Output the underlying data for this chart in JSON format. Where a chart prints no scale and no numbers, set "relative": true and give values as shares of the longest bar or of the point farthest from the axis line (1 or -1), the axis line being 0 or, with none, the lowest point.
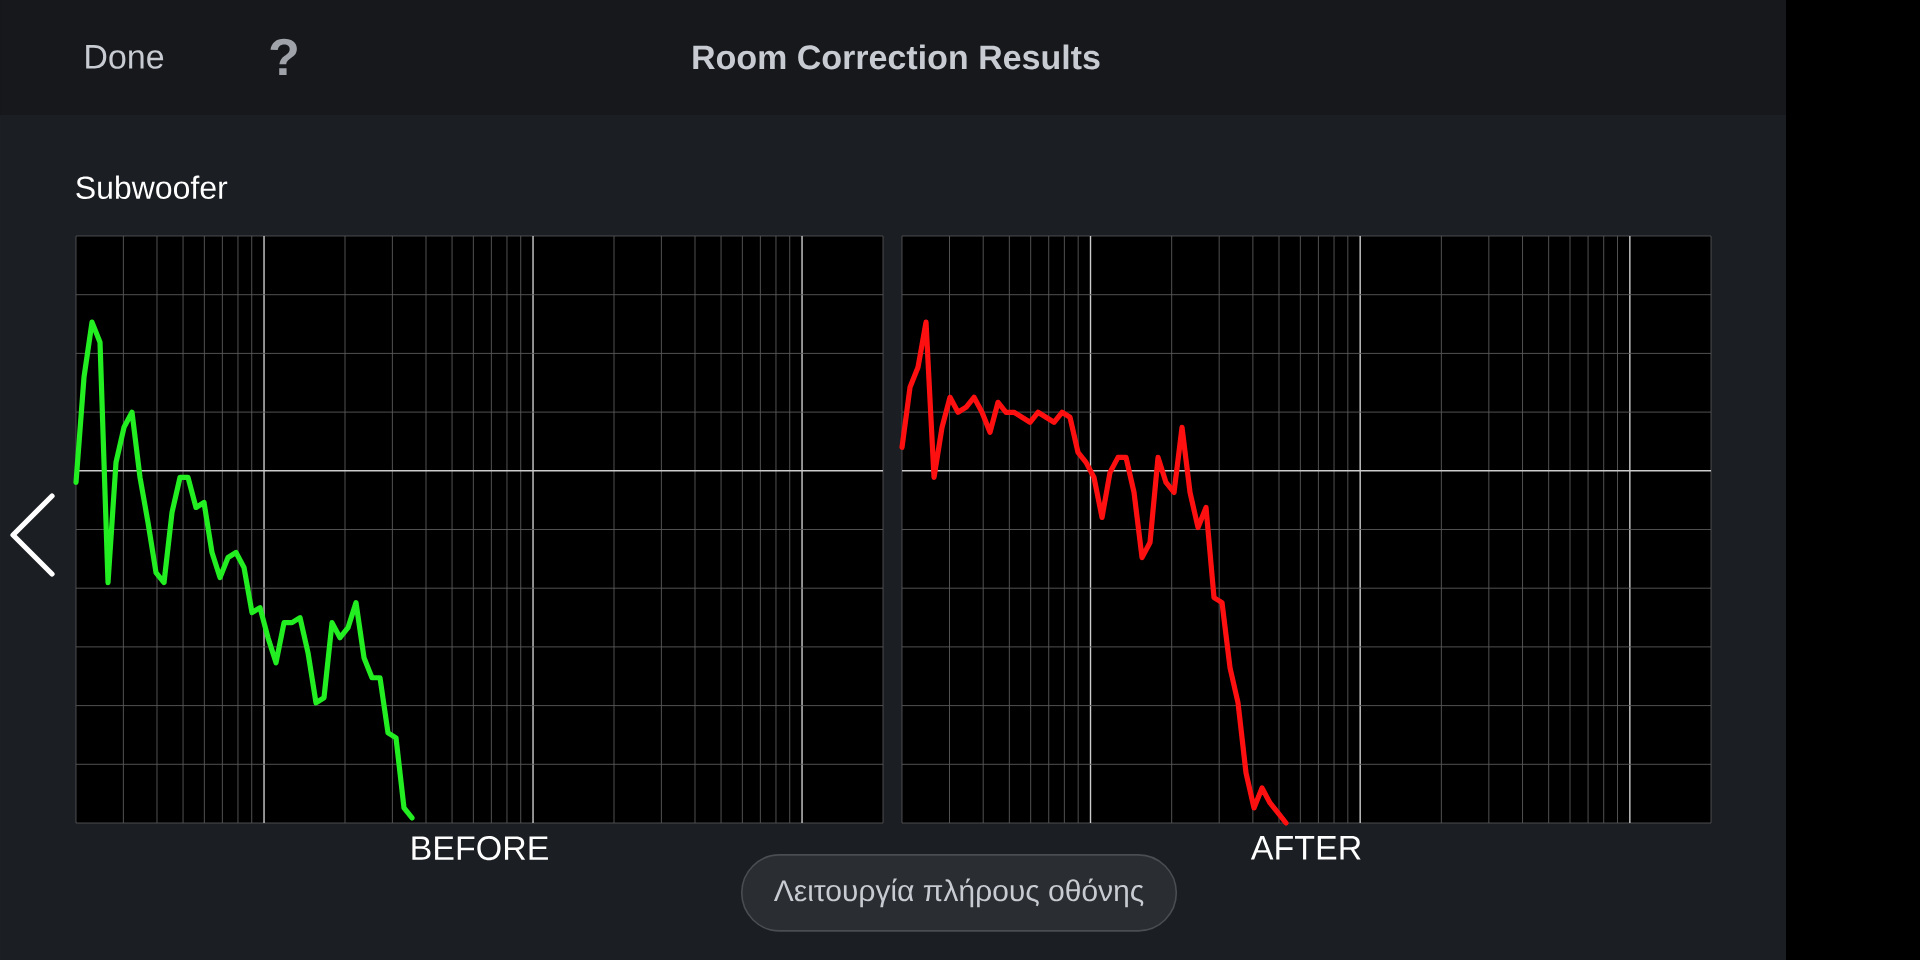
{
  "chart_data": [
    {
      "type": "line",
      "title": "Room Correction Results",
      "subtitle": "Subwoofer",
      "xlabel": "BEFORE",
      "annotations": [
        "Done",
        "?",
        "Λειτουργία πλήρους οθόνης"
      ],
      "relative": true,
      "grid": true,
      "color": "#22ee22",
      "categories": [
        null,
        null,
        null,
        null,
        null,
        null,
        null,
        null,
        null,
        null,
        null,
        null,
        null,
        null,
        null,
        null,
        null,
        null,
        null,
        null,
        null,
        null,
        null,
        null,
        null,
        null,
        null,
        null,
        null,
        null,
        null,
        null,
        null,
        null,
        null,
        null,
        null,
        null,
        null,
        null,
        null,
        null,
        null,
        null,
        null,
        null,
        null,
        null,
        null,
        null,
        null,
        null,
        null,
        null,
        null,
        null,
        null,
        null,
        null,
        null,
        null,
        null,
        null,
        null,
        null,
        null,
        null,
        null,
        null,
        null,
        null,
        null,
        null,
        null,
        null,
        null,
        null,
        null,
        null,
        null,
        null,
        null,
        null,
        null,
        null,
        null,
        null,
        null,
        null,
        null,
        null,
        null,
        null,
        null,
        null,
        null,
        null,
        null,
        null,
        null,
        null
      ],
      "values": [
        0.68,
        0.89,
        1,
        0.96,
        0.48,
        0.72,
        0.79,
        0.82,
        0.69,
        0.6,
        0.5,
        0.48,
        0.62,
        0.69,
        0.69,
        0.63,
        0.64,
        0.54,
        0.49,
        0.53,
        0.54,
        0.51,
        0.42,
        0.43,
        0.37,
        0.32,
        0.4,
        0.4,
        0.41,
        0.34,
        0.24,
        0.25,
        0.4,
        0.37,
        0.39,
        0.44,
        0.33,
        0.29,
        0.29,
        0.18,
        0.17,
        0.03,
        0.01,
        null,
        null,
        null,
        null,
        null,
        null,
        null,
        null,
        null,
        null,
        null,
        null,
        null,
        null,
        null,
        null,
        null,
        null,
        null,
        null,
        null,
        null,
        null,
        null,
        null,
        null,
        null,
        null,
        null,
        null,
        null,
        null,
        null,
        null,
        null,
        null,
        null,
        null,
        null,
        null,
        null,
        null,
        null,
        null,
        null,
        null,
        null,
        null,
        null,
        null,
        null,
        null,
        null,
        null,
        null,
        null,
        null,
        null
      ]
    },
    {
      "type": "line",
      "xlabel": "AFTER",
      "relative": true,
      "grid": true,
      "color": "#ff1010",
      "categories": [
        null,
        null,
        null,
        null,
        null,
        null,
        null,
        null,
        null,
        null,
        null,
        null,
        null,
        null,
        null,
        null,
        null,
        null,
        null,
        null,
        null,
        null,
        null,
        null,
        null,
        null,
        null,
        null,
        null,
        null,
        null,
        null,
        null,
        null,
        null,
        null,
        null,
        null,
        null,
        null,
        null,
        null,
        null,
        null,
        null,
        null,
        null,
        null,
        null,
        null,
        null,
        null,
        null,
        null,
        null,
        null,
        null,
        null,
        null,
        null,
        null,
        null,
        null,
        null,
        null,
        null,
        null,
        null,
        null,
        null,
        null,
        null,
        null,
        null,
        null,
        null,
        null,
        null,
        null,
        null,
        null,
        null,
        null,
        null,
        null,
        null,
        null,
        null,
        null,
        null,
        null,
        null,
        null,
        null,
        null,
        null,
        null,
        null,
        null,
        null,
        null
      ],
      "values": [
        0.75,
        0.87,
        0.91,
        1,
        0.69,
        0.79,
        0.85,
        0.82,
        0.83,
        0.85,
        0.82,
        0.78,
        0.84,
        0.82,
        0.82,
        0.81,
        0.8,
        0.82,
        0.81,
        0.8,
        0.82,
        0.81,
        0.74,
        0.72,
        0.69,
        0.61,
        0.7,
        0.73,
        0.73,
        0.66,
        0.53,
        0.56,
        0.73,
        0.68,
        0.66,
        0.79,
        0.66,
        0.59,
        0.63,
        0.45,
        0.44,
        0.31,
        0.24,
        0.1,
        0.03,
        0.07,
        0.04,
        0.02,
        0,
        null,
        null,
        null,
        null,
        null,
        null,
        null,
        null,
        null,
        null,
        null,
        null,
        null,
        null,
        null,
        null,
        null,
        null,
        null,
        null,
        null,
        null,
        null,
        null,
        null,
        null,
        null,
        null,
        null,
        null,
        null,
        null,
        null,
        null,
        null,
        null,
        null,
        null,
        null,
        null,
        null,
        null,
        null,
        null,
        null,
        null,
        null,
        null,
        null,
        null,
        null,
        null
      ]
    }
  ]
}
